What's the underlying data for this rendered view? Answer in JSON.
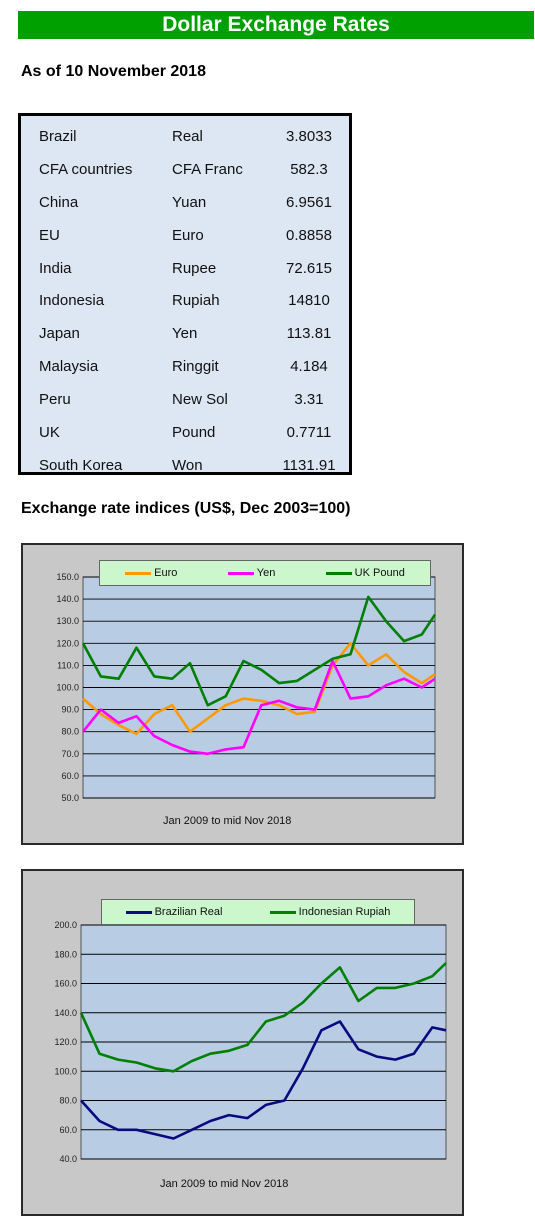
{
  "header": {
    "title": "Dollar Exchange Rates",
    "as_of": "As of 10 November 2018"
  },
  "rates_table": [
    [
      "Brazil",
      "Real",
      "3.8033"
    ],
    [
      "CFA countries",
      "CFA Franc",
      "582.3"
    ],
    [
      "China",
      "Yuan",
      "6.9561"
    ],
    [
      "EU",
      "Euro",
      "0.8858"
    ],
    [
      "India",
      "Rupee",
      "72.615"
    ],
    [
      "Indonesia",
      "Rupiah",
      "14810"
    ],
    [
      "Japan",
      "Yen",
      "113.81"
    ],
    [
      "Malaysia",
      "Ringgit",
      "4.184"
    ],
    [
      "Peru",
      "New Sol",
      "3.31"
    ],
    [
      "UK",
      "Pound",
      "0.7711"
    ],
    [
      "South Korea",
      "Won",
      "1131.91"
    ]
  ],
  "section_title": "Exchange rate indices (US$, Dec 2003=100)",
  "chart_data": [
    {
      "type": "line",
      "caption": "Jan 2009  to mid Nov 2018",
      "ylim": [
        50,
        150
      ],
      "yticks": [
        "50.0",
        "60.0",
        "70.0",
        "80.0",
        "90.0",
        "100.0",
        "110.0",
        "120.0",
        "130.0",
        "140.0",
        "150.0"
      ],
      "legend": "top",
      "grid": true,
      "x": [
        2009.0,
        2009.5,
        2010.0,
        2010.5,
        2011.0,
        2011.5,
        2012.0,
        2012.5,
        2013.0,
        2013.5,
        2014.0,
        2014.5,
        2015.0,
        2015.5,
        2016.0,
        2016.5,
        2017.0,
        2017.5,
        2018.0,
        2018.5,
        2018.87
      ],
      "series": [
        {
          "name": "Euro",
          "color": "#ff9900",
          "values": [
            95,
            88,
            83,
            79,
            88,
            92,
            80,
            86,
            92,
            95,
            94,
            92,
            88,
            89,
            110,
            120,
            110,
            115,
            107,
            102,
            106
          ]
        },
        {
          "name": "Yen",
          "color": "#ff00ff",
          "values": [
            80,
            90,
            84,
            87,
            78,
            74,
            71,
            70,
            72,
            73,
            92,
            94,
            91,
            90,
            112,
            95,
            96,
            101,
            104,
            100,
            104
          ]
        },
        {
          "name": "UK Pound",
          "color": "#008000",
          "values": [
            120,
            105,
            104,
            118,
            105,
            104,
            111,
            92,
            96,
            112,
            108,
            102,
            103,
            108,
            113,
            115,
            141,
            130,
            121,
            124,
            133
          ]
        }
      ]
    },
    {
      "type": "line",
      "caption": "Jan 2009  to mid Nov 2018",
      "ylim": [
        40,
        200
      ],
      "yticks": [
        "40.0",
        "60.0",
        "80.0",
        "100.0",
        "120.0",
        "140.0",
        "160.0",
        "180.0",
        "200.0"
      ],
      "legend": "top",
      "grid": true,
      "x": [
        2009.0,
        2009.5,
        2010.0,
        2010.5,
        2011.0,
        2011.5,
        2012.0,
        2012.5,
        2013.0,
        2013.5,
        2014.0,
        2014.5,
        2015.0,
        2015.5,
        2016.0,
        2016.5,
        2017.0,
        2017.5,
        2018.0,
        2018.5,
        2018.87
      ],
      "series": [
        {
          "name": "Brazilian Real",
          "color": "#0a0a80",
          "values": [
            80,
            66,
            60,
            60,
            57,
            54,
            60,
            66,
            70,
            68,
            77,
            80,
            102,
            128,
            134,
            115,
            110,
            108,
            112,
            130,
            128
          ]
        },
        {
          "name": "Indonesian Rupiah",
          "color": "#008000",
          "values": [
            140,
            112,
            108,
            106,
            102,
            100,
            107,
            112,
            114,
            118,
            134,
            138,
            147,
            160,
            171,
            148,
            157,
            157,
            160,
            165,
            174
          ]
        }
      ]
    }
  ]
}
